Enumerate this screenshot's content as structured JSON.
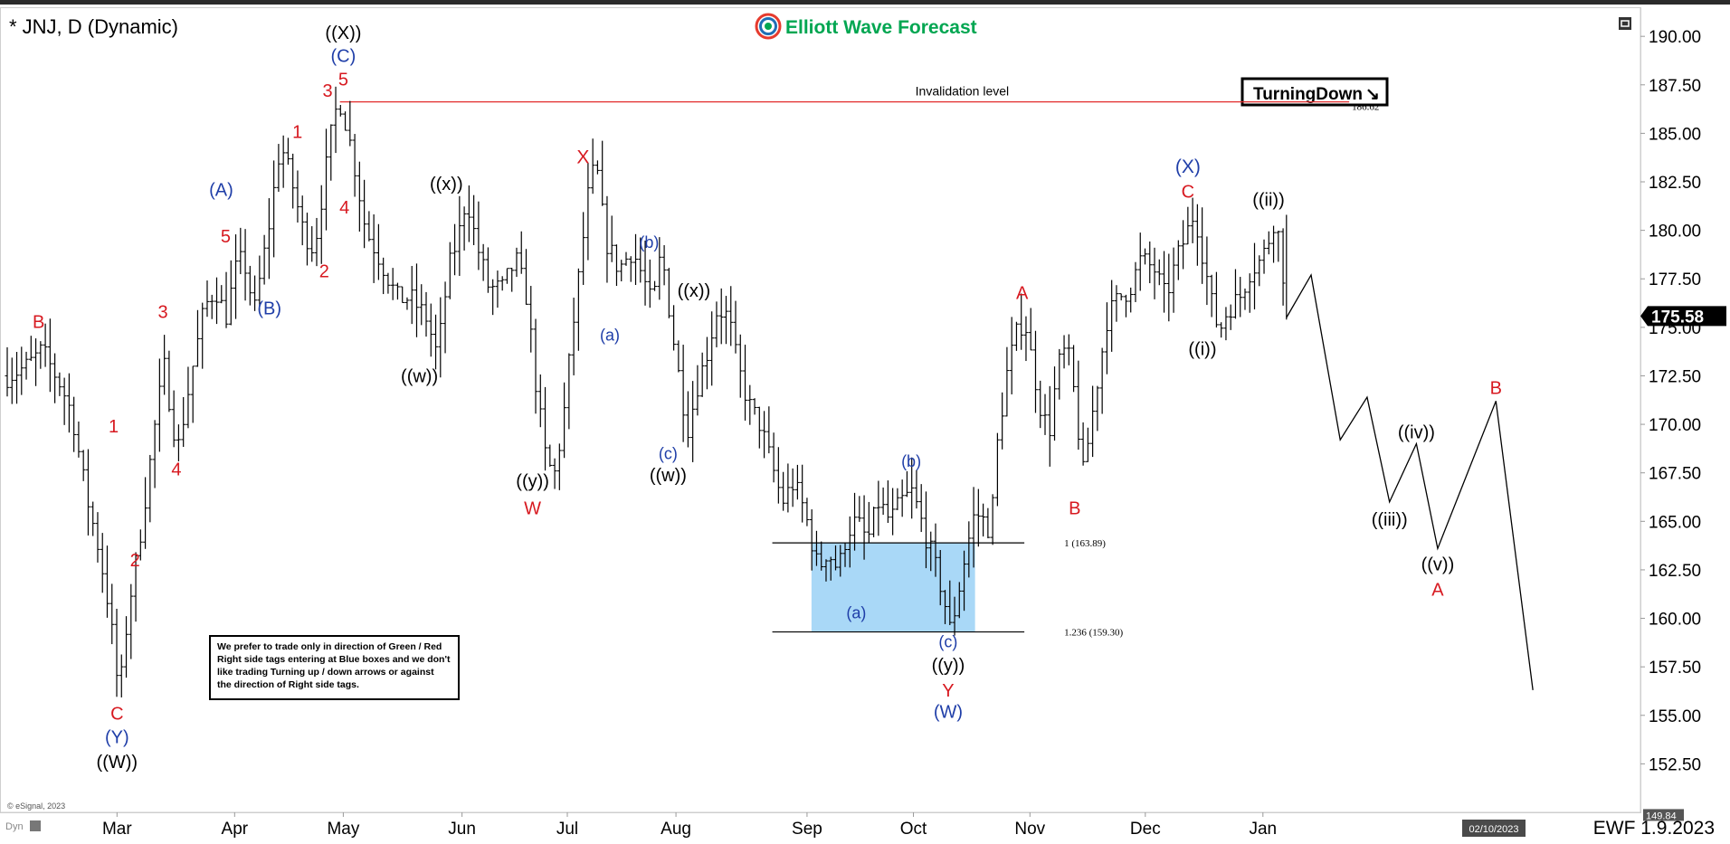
{
  "header": {
    "symbol_title": "* JNJ, D (Dynamic)",
    "brand_name": "Elliott Wave Forecast",
    "brand_colors": {
      "elliott": "#00a651",
      "wave": "#00a651",
      "forecast": "#00a651",
      "logo_ring_outer": "#e63b2e",
      "logo_ring_inner": "#1f6fb5"
    }
  },
  "footer": {
    "copyright": "© eSignal, 2023",
    "dyn_label": "Dyn",
    "stamp": "EWF 1.9.2023",
    "date_box": "02/10/2023"
  },
  "tag": {
    "label": "TurningDown",
    "arrow": "↘"
  },
  "note_lines": [
    "We prefer to trade only in direction of Green / Red",
    "Right side tags entering at Blue boxes and we don't",
    "like trading Turning up / down arrows or against",
    "the direction of Right side tags."
  ],
  "colors": {
    "bar": "#000000",
    "red_label": "#d71920",
    "blue_label": "#1f3ea8",
    "black_label": "#000000",
    "invalidation_line": "#e22b2b",
    "blue_box": "#a9d8f7",
    "price_badge_bg": "#000000",
    "price_badge_fg": "#ffffff"
  },
  "chart_data": {
    "type": "ohlc",
    "title": "* JNJ, D (Dynamic)",
    "ylim": [
      150,
      191.5
    ],
    "y_ticks": [
      "152.50",
      "155.00",
      "157.50",
      "160.00",
      "162.50",
      "165.00",
      "167.50",
      "170.00",
      "172.50",
      "175.00",
      "177.50",
      "180.00",
      "182.50",
      "185.00",
      "187.50",
      "190.00"
    ],
    "x_ticks": [
      {
        "label": "Mar",
        "day": 40
      },
      {
        "label": "Apr",
        "day": 145
      },
      {
        "label": "May",
        "day": 242
      },
      {
        "label": "Jun",
        "day": 348
      },
      {
        "label": "Jul",
        "day": 442
      },
      {
        "label": "Aug",
        "day": 539
      },
      {
        "label": "Sep",
        "day": 656
      },
      {
        "label": "Oct",
        "day": 751
      },
      {
        "label": "Nov",
        "day": 855
      },
      {
        "label": "Dec",
        "day": 958
      },
      {
        "label": "Jan",
        "day": 1063
      }
    ],
    "x_range": [
      -58,
      1400
    ],
    "last_price": "175.58",
    "min_price_label": "149.84",
    "invalidation": {
      "price": 186.62,
      "label": "Invalidation level",
      "value_label": "186.62",
      "from_day": 239,
      "to_day": 1140
    },
    "fib_levels": [
      {
        "price": 163.89,
        "label": "1 (163.89)",
        "from_day": 625,
        "to_day": 850
      },
      {
        "price": 159.3,
        "label": "1.236 (159.30)",
        "from_day": 625,
        "to_day": 850
      }
    ],
    "blue_box": {
      "from_day": 660,
      "to_day": 806,
      "top": 163.89,
      "bottom": 159.3
    },
    "anchors": [
      [
        -58,
        172.5
      ],
      [
        -40,
        173.0
      ],
      [
        -27,
        173.8
      ],
      [
        -10,
        172.0
      ],
      [
        0,
        170.5
      ],
      [
        12,
        166.5
      ],
      [
        24,
        163.5
      ],
      [
        33,
        160.5
      ],
      [
        38,
        158.0
      ],
      [
        42,
        155.8
      ],
      [
        50,
        160.5
      ],
      [
        58,
        163.2
      ],
      [
        66,
        166.5
      ],
      [
        74,
        170.0
      ],
      [
        82,
        173.0
      ],
      [
        94,
        168.6
      ],
      [
        106,
        172.5
      ],
      [
        118,
        176.0
      ],
      [
        128,
        177.0
      ],
      [
        137,
        175.5
      ],
      [
        148,
        178.5
      ],
      [
        156,
        178.0
      ],
      [
        162,
        175.6
      ],
      [
        175,
        180.0
      ],
      [
        186,
        184.5
      ],
      [
        196,
        182.5
      ],
      [
        206,
        180.0
      ],
      [
        216,
        179.0
      ],
      [
        226,
        183.0
      ],
      [
        234,
        186.0
      ],
      [
        240,
        186.6
      ],
      [
        250,
        184.0
      ],
      [
        262,
        180.0
      ],
      [
        275,
        178.5
      ],
      [
        290,
        176.5
      ],
      [
        302,
        176.5
      ],
      [
        316,
        175.5
      ],
      [
        326,
        173.5
      ],
      [
        336,
        178.0
      ],
      [
        346,
        180.0
      ],
      [
        352,
        181.8
      ],
      [
        360,
        179.5
      ],
      [
        372,
        177.0
      ],
      [
        384,
        177.0
      ],
      [
        396,
        178.5
      ],
      [
        406,
        176.5
      ],
      [
        414,
        172.0
      ],
      [
        422,
        168.5
      ],
      [
        430,
        167.2
      ],
      [
        438,
        170.0
      ],
      [
        446,
        174.5
      ],
      [
        454,
        178.5
      ],
      [
        462,
        182.5
      ],
      [
        468,
        183.3
      ],
      [
        476,
        179.5
      ],
      [
        488,
        178.0
      ],
      [
        500,
        179.0
      ],
      [
        510,
        177.5
      ],
      [
        518,
        176.0
      ],
      [
        526,
        179.0
      ],
      [
        534,
        175.5
      ],
      [
        544,
        171.5
      ],
      [
        550,
        169.8
      ],
      [
        558,
        172.0
      ],
      [
        566,
        173.5
      ],
      [
        576,
        176.0
      ],
      [
        586,
        175.5
      ],
      [
        594,
        173.0
      ],
      [
        604,
        171.0
      ],
      [
        614,
        170.0
      ],
      [
        624,
        168.0
      ],
      [
        634,
        166.0
      ],
      [
        644,
        167.0
      ],
      [
        654,
        165.5
      ],
      [
        660,
        164.0
      ],
      [
        666,
        162.5
      ],
      [
        674,
        163.5
      ],
      [
        684,
        162.5
      ],
      [
        692,
        164.5
      ],
      [
        700,
        165.0
      ],
      [
        710,
        164.0
      ],
      [
        720,
        166.0
      ],
      [
        730,
        165.0
      ],
      [
        740,
        166.0
      ],
      [
        750,
        166.5
      ],
      [
        758,
        165.0
      ],
      [
        766,
        163.5
      ],
      [
        774,
        162.0
      ],
      [
        780,
        160.5
      ],
      [
        784,
        159.3
      ],
      [
        790,
        161.0
      ],
      [
        798,
        163.5
      ],
      [
        806,
        165.5
      ],
      [
        814,
        165.0
      ],
      [
        820,
        164.5
      ],
      [
        826,
        169.0
      ],
      [
        834,
        172.5
      ],
      [
        842,
        174.5
      ],
      [
        850,
        175.5
      ],
      [
        856,
        173.5
      ],
      [
        864,
        171.0
      ],
      [
        872,
        169.5
      ],
      [
        880,
        173.0
      ],
      [
        888,
        174.0
      ],
      [
        896,
        171.0
      ],
      [
        902,
        167.3
      ],
      [
        908,
        169.5
      ],
      [
        916,
        172.5
      ],
      [
        924,
        175.5
      ],
      [
        934,
        176.5
      ],
      [
        944,
        177.0
      ],
      [
        954,
        178.5
      ],
      [
        966,
        178.0
      ],
      [
        976,
        176.5
      ],
      [
        986,
        178.5
      ],
      [
        996,
        180.0
      ],
      [
        1002,
        181.0
      ],
      [
        1010,
        178.5
      ],
      [
        1018,
        176.0
      ],
      [
        1024,
        174.8
      ],
      [
        1032,
        176.0
      ],
      [
        1042,
        176.5
      ],
      [
        1052,
        178.0
      ],
      [
        1062,
        178.5
      ],
      [
        1068,
        179.5
      ],
      [
        1074,
        180.8
      ],
      [
        1080,
        178.5
      ],
      [
        1084,
        175.6
      ]
    ],
    "projection": [
      [
        1084,
        175.5
      ],
      [
        1106,
        177.7
      ],
      [
        1132,
        169.2
      ],
      [
        1156,
        171.4
      ],
      [
        1176,
        166.0
      ],
      [
        1200,
        169.0
      ],
      [
        1219,
        163.6
      ],
      [
        1271,
        171.2
      ],
      [
        1304,
        156.3
      ]
    ],
    "wave_labels": [
      {
        "text": "B",
        "day": -30,
        "price": 175.3,
        "color": "red",
        "size": 20
      },
      {
        "text": "1",
        "day": 37,
        "price": 169.9,
        "color": "red",
        "size": 20
      },
      {
        "text": "2",
        "day": 56,
        "price": 163.0,
        "color": "red",
        "size": 20
      },
      {
        "text": "3",
        "day": 81,
        "price": 175.8,
        "color": "red",
        "size": 20
      },
      {
        "text": "4",
        "day": 93,
        "price": 167.7,
        "color": "red",
        "size": 20
      },
      {
        "text": "5",
        "day": 137,
        "price": 179.7,
        "color": "red",
        "size": 20
      },
      {
        "text": "(A)",
        "day": 133,
        "price": 182.1,
        "color": "blue",
        "size": 20
      },
      {
        "text": "(B)",
        "day": 176,
        "price": 176.0,
        "color": "blue",
        "size": 20
      },
      {
        "text": "1",
        "day": 201,
        "price": 185.1,
        "color": "red",
        "size": 20
      },
      {
        "text": "2",
        "day": 225,
        "price": 177.9,
        "color": "red",
        "size": 20
      },
      {
        "text": "3",
        "day": 228,
        "price": 187.2,
        "color": "red",
        "size": 20
      },
      {
        "text": "4",
        "day": 243,
        "price": 181.2,
        "color": "red",
        "size": 20
      },
      {
        "text": "5",
        "day": 242,
        "price": 187.8,
        "color": "red",
        "size": 20
      },
      {
        "text": "(C)",
        "day": 242,
        "price": 189.0,
        "color": "blue",
        "size": 20
      },
      {
        "text": "((X))",
        "day": 242,
        "price": 190.2,
        "color": "black",
        "size": 20
      },
      {
        "text": "C",
        "day": 40,
        "price": 155.1,
        "color": "red",
        "size": 20
      },
      {
        "text": "(Y)",
        "day": 40,
        "price": 153.9,
        "color": "blue",
        "size": 20
      },
      {
        "text": "((W))",
        "day": 40,
        "price": 152.6,
        "color": "black",
        "size": 20
      },
      {
        "text": "((x))",
        "day": 334,
        "price": 182.4,
        "color": "black",
        "size": 20
      },
      {
        "text": "((w))",
        "day": 310,
        "price": 172.5,
        "color": "black",
        "size": 20
      },
      {
        "text": "X",
        "day": 456,
        "price": 183.8,
        "color": "red",
        "size": 21
      },
      {
        "text": "((y))",
        "day": 411,
        "price": 167.1,
        "color": "black",
        "size": 20
      },
      {
        "text": "W",
        "day": 411,
        "price": 165.7,
        "color": "red",
        "size": 20
      },
      {
        "text": "(b)",
        "day": 515,
        "price": 179.4,
        "color": "blue",
        "size": 18
      },
      {
        "text": "(a)",
        "day": 480,
        "price": 174.6,
        "color": "blue",
        "size": 18
      },
      {
        "text": "((x))",
        "day": 555,
        "price": 176.9,
        "color": "black",
        "size": 20
      },
      {
        "text": "(c)",
        "day": 532,
        "price": 168.5,
        "color": "blue",
        "size": 18
      },
      {
        "text": "((w))",
        "day": 532,
        "price": 167.4,
        "color": "black",
        "size": 20
      },
      {
        "text": "(b)",
        "day": 749,
        "price": 168.1,
        "color": "blue",
        "size": 18
      },
      {
        "text": "(a)",
        "day": 700,
        "price": 160.3,
        "color": "blue",
        "size": 18
      },
      {
        "text": "(c)",
        "day": 782,
        "price": 158.8,
        "color": "blue",
        "size": 18
      },
      {
        "text": "((y))",
        "day": 782,
        "price": 157.6,
        "color": "black",
        "size": 20
      },
      {
        "text": "Y",
        "day": 782,
        "price": 156.3,
        "color": "red",
        "size": 20
      },
      {
        "text": "(W)",
        "day": 782,
        "price": 155.2,
        "color": "blue",
        "size": 20
      },
      {
        "text": "A",
        "day": 848,
        "price": 176.8,
        "color": "red",
        "size": 20
      },
      {
        "text": "B",
        "day": 895,
        "price": 165.7,
        "color": "red",
        "size": 20
      },
      {
        "text": "(X)",
        "day": 996,
        "price": 183.3,
        "color": "blue",
        "size": 21
      },
      {
        "text": "C",
        "day": 996,
        "price": 182.0,
        "color": "red",
        "size": 20
      },
      {
        "text": "((ii))",
        "day": 1068,
        "price": 181.6,
        "color": "black",
        "size": 20
      },
      {
        "text": "((i))",
        "day": 1009,
        "price": 173.9,
        "color": "black",
        "size": 20
      },
      {
        "text": "((iv))",
        "day": 1200,
        "price": 169.6,
        "color": "black",
        "size": 20
      },
      {
        "text": "((iii))",
        "day": 1176,
        "price": 165.1,
        "color": "black",
        "size": 20
      },
      {
        "text": "((v))",
        "day": 1219,
        "price": 162.8,
        "color": "black",
        "size": 20
      },
      {
        "text": "A",
        "day": 1219,
        "price": 161.5,
        "color": "red",
        "size": 20
      },
      {
        "text": "B",
        "day": 1271,
        "price": 171.9,
        "color": "red",
        "size": 20
      }
    ]
  }
}
